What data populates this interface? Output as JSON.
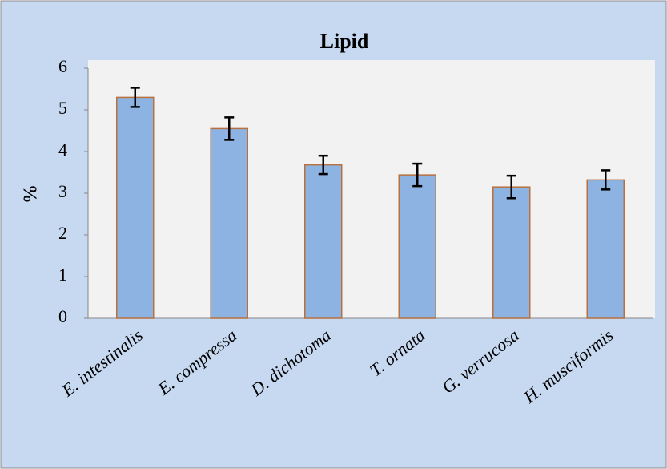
{
  "chart_data": {
    "type": "bar",
    "title": "Lipid",
    "y_label": "%",
    "categories": [
      "E. intestinalis",
      "E. compressa",
      "D. dichotoma",
      "T. ornata",
      "G. verrucosa",
      "H. musciformis"
    ],
    "values": [
      5.3,
      4.55,
      3.68,
      3.44,
      3.15,
      3.32
    ],
    "errors": [
      0.23,
      0.27,
      0.22,
      0.27,
      0.27,
      0.23
    ],
    "color": "#8db3e2",
    "edge_color": "#b8703d",
    "ylim": [
      0,
      6
    ],
    "yticks": [
      0,
      1,
      2,
      3,
      4,
      5,
      6
    ],
    "grid": false
  }
}
